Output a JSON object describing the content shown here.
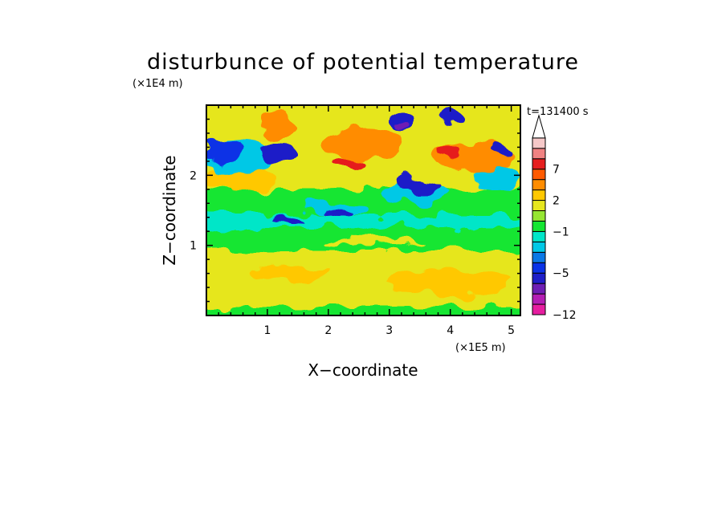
{
  "chart_data": {
    "type": "heatmap",
    "title": "disturbunce of potential temperature",
    "time_label": "t=131400 s",
    "xlabel": "X−coordinate",
    "ylabel": "Z−coordinate",
    "x_scale_label": "(×1E5 m)",
    "y_scale_label": "(×1E4 m)",
    "xlim": [
      0,
      5.15
    ],
    "ylim": [
      0,
      3.0
    ],
    "x_ticks": [
      "1",
      "2",
      "3",
      "4",
      "5"
    ],
    "x_tick_values": [
      1,
      2,
      3,
      4,
      5
    ],
    "y_ticks": [
      "1",
      "2"
    ],
    "y_tick_values": [
      1,
      2
    ],
    "colorbar": {
      "labels": [
        "7",
        "2",
        "−1",
        "−5",
        "−12"
      ],
      "label_values": [
        7,
        2,
        -1,
        -5,
        -12
      ],
      "levels": [
        -12,
        -10,
        -8,
        -7,
        -5,
        -4,
        -3,
        -2,
        -1,
        0,
        1,
        2,
        3,
        5,
        7,
        9,
        11
      ],
      "colors": [
        "#e61ea0",
        "#b41eb4",
        "#6e1eb4",
        "#1e1ec8",
        "#0a32e6",
        "#0a78e6",
        "#00c8e6",
        "#00e6c8",
        "#14e632",
        "#96e632",
        "#e6e61e",
        "#ffc800",
        "#ff8c00",
        "#ff5a00",
        "#e61e1e",
        "#f08282",
        "#f5c8c8"
      ]
    }
  }
}
